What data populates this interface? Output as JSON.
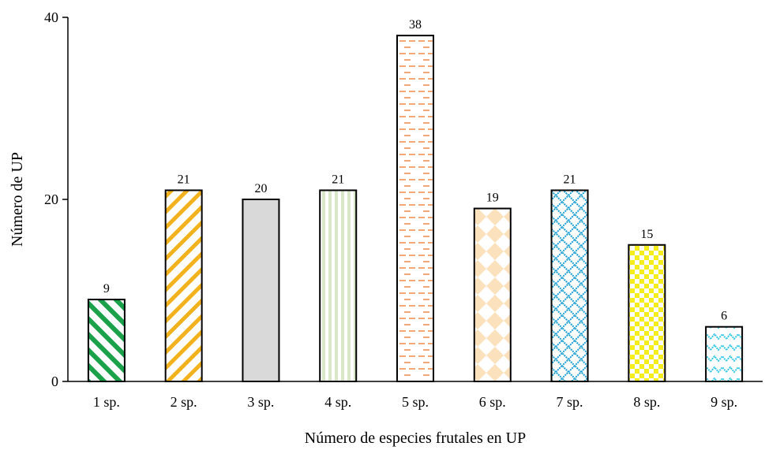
{
  "chart_data": {
    "type": "bar",
    "categories": [
      "1 sp.",
      "2 sp.",
      "3 sp.",
      "4 sp.",
      "5 sp.",
      "6 sp.",
      "7 sp.",
      "8 sp.",
      "9 sp."
    ],
    "values": [
      9,
      21,
      20,
      21,
      38,
      19,
      21,
      15,
      6
    ],
    "xlabel": "Número de especies frutales en UP",
    "ylabel": "Número de UP",
    "ylim": [
      0,
      40
    ],
    "yticks": [
      0,
      20,
      40
    ],
    "grid": false,
    "legend": "none",
    "bar_patterns": [
      {
        "pattern": "diagonal-stripes",
        "color": "#1aa14a"
      },
      {
        "pattern": "diagonal-stripes-reverse",
        "color": "#f2b21e"
      },
      {
        "pattern": "solid",
        "color": "#d9d9d9"
      },
      {
        "pattern": "vertical-stripes",
        "color": "#d8e7c8"
      },
      {
        "pattern": "dashes",
        "color": "#f2a97a"
      },
      {
        "pattern": "diamonds",
        "color": "#fbe2bd"
      },
      {
        "pattern": "lattice",
        "color": "#1e9fd6"
      },
      {
        "pattern": "checker",
        "color": "#f5ee1c"
      },
      {
        "pattern": "waves",
        "color": "#36c7e6"
      }
    ]
  }
}
